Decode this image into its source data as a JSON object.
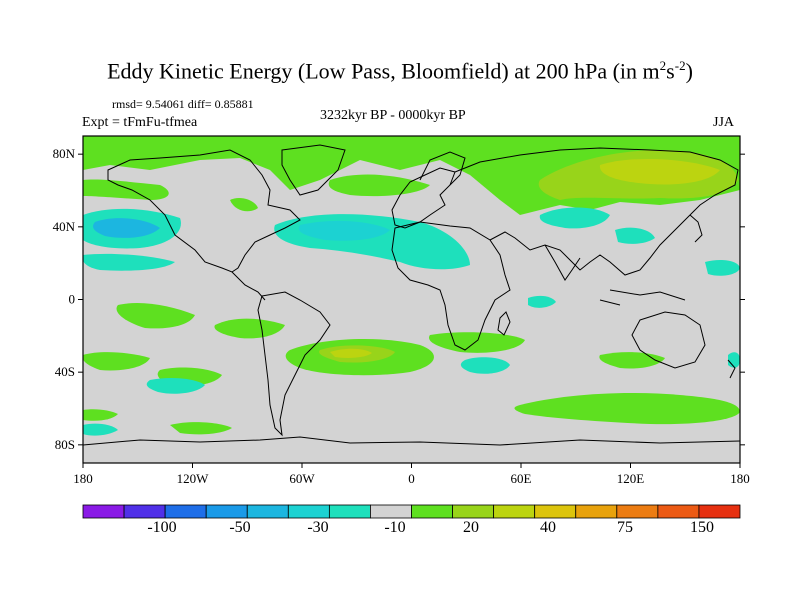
{
  "title": {
    "main": "Eddy Kinetic Energy (Low Pass, Bloomfield) at 200 hPa (in m",
    "sup1": "2",
    "mid": "s",
    "sup2": "-2",
    "end": ")"
  },
  "stats": "rmsd= 9.54061 diff= 0.85881",
  "experiment": "Expt = tFmFu-tfmea",
  "period": "3232kyr BP - 0000kyr BP",
  "season": "JJA",
  "axes": {
    "y_ticks": [
      "80N",
      "40N",
      "0",
      "40S",
      "80S"
    ],
    "x_ticks": [
      "180",
      "120W",
      "60W",
      "0",
      "60E",
      "120E",
      "180"
    ]
  },
  "colorbar": {
    "colors": [
      "#8a1ae6",
      "#5030e8",
      "#1e6ee8",
      "#1a9ae8",
      "#1cb6e0",
      "#1cd2d2",
      "#1ee0bc",
      "#d3d3d3",
      "#5ee020",
      "#98d41a",
      "#bcd410",
      "#dcc40c",
      "#e8a20c",
      "#ec7c12",
      "#ec5a14",
      "#e63010"
    ],
    "labels": [
      "-100",
      "-50",
      "-30",
      "-10",
      "20",
      "40",
      "75",
      "150"
    ]
  },
  "chart_data": {
    "type": "map",
    "projection": "cylindrical-equidistant",
    "lon_range": [
      -180,
      180
    ],
    "lat_range": [
      -90,
      90
    ],
    "background_value_color": "#d3d3d3",
    "features": [
      {
        "region": "arctic-north-atlantic",
        "sign": "positive",
        "level": "10-20"
      },
      {
        "region": "siberia-arctic",
        "sign": "positive",
        "level": "20-40"
      },
      {
        "region": "north-pacific-40N",
        "sign": "negative",
        "level": "-10 to -30"
      },
      {
        "region": "north-atlantic-30N-40N",
        "sign": "negative",
        "level": "-10 to -30"
      },
      {
        "region": "central-asia-40N",
        "sign": "negative",
        "level": "-10"
      },
      {
        "region": "south-atlantic-35S",
        "sign": "positive",
        "level": "20-40"
      },
      {
        "region": "southern-ocean-indian-60S",
        "sign": "positive",
        "level": "10-20"
      },
      {
        "region": "south-pacific-35S",
        "sign": "positive",
        "level": "10-20"
      }
    ]
  }
}
